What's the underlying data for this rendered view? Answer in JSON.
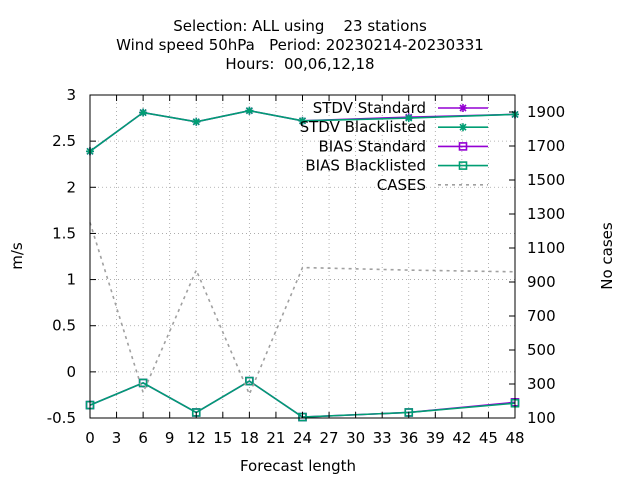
{
  "title_lines": [
    "Selection: ALL using    23 stations",
    "Wind speed 50hPa   Period: 20230214-20230331",
    "Hours:  00,06,12,18"
  ],
  "chart_data": {
    "type": "line",
    "xlabel": "Forecast length",
    "ylabel": "m/s",
    "y2label": "No cases",
    "xlim": [
      0,
      48
    ],
    "ylim": [
      -0.5,
      3
    ],
    "y2lim": [
      100,
      2000
    ],
    "xticks": [
      0,
      3,
      6,
      9,
      12,
      15,
      18,
      21,
      24,
      27,
      30,
      33,
      36,
      39,
      42,
      45,
      48
    ],
    "yticks": [
      -0.5,
      0,
      0.5,
      1,
      1.5,
      2,
      2.5,
      3
    ],
    "ytick_labels": [
      "-0.5",
      "0",
      "0.5",
      "1",
      "1.5",
      "2",
      "2.5",
      "3"
    ],
    "y2ticks": [
      100,
      300,
      500,
      700,
      900,
      1100,
      1300,
      1500,
      1700,
      1900
    ],
    "grid": true,
    "legend_position": "top-right",
    "series": [
      {
        "name": "STDV Standard",
        "axis": "y1",
        "color": "#9400d3",
        "marker": "star",
        "dash": false,
        "x": [
          0,
          6,
          12,
          18,
          24,
          36,
          48
        ],
        "y": [
          2.39,
          2.81,
          2.71,
          2.83,
          2.72,
          2.76,
          2.79
        ]
      },
      {
        "name": "STDV Blacklisted",
        "axis": "y1",
        "color": "#009e73",
        "marker": "star",
        "dash": false,
        "x": [
          0,
          6,
          12,
          18,
          24,
          36,
          48
        ],
        "y": [
          2.39,
          2.81,
          2.71,
          2.83,
          2.72,
          2.75,
          2.79
        ]
      },
      {
        "name": "BIAS Standard",
        "axis": "y1",
        "color": "#9400d3",
        "marker": "square",
        "dash": false,
        "x": [
          0,
          6,
          12,
          18,
          24,
          36,
          48
        ],
        "y": [
          -0.36,
          -0.12,
          -0.44,
          -0.1,
          -0.49,
          -0.44,
          -0.33
        ]
      },
      {
        "name": "BIAS Blacklisted",
        "axis": "y1",
        "color": "#009e73",
        "marker": "square",
        "dash": false,
        "x": [
          0,
          6,
          12,
          18,
          24,
          36,
          48
        ],
        "y": [
          -0.36,
          -0.12,
          -0.44,
          -0.1,
          -0.49,
          -0.44,
          -0.34
        ]
      },
      {
        "name": "CASES",
        "axis": "y2",
        "color": "#a0a0a0",
        "marker": "none",
        "dash": true,
        "x": [
          0,
          6,
          12,
          18,
          24,
          36,
          48
        ],
        "y": [
          1250,
          250,
          970,
          240,
          985,
          970,
          960
        ]
      }
    ]
  }
}
